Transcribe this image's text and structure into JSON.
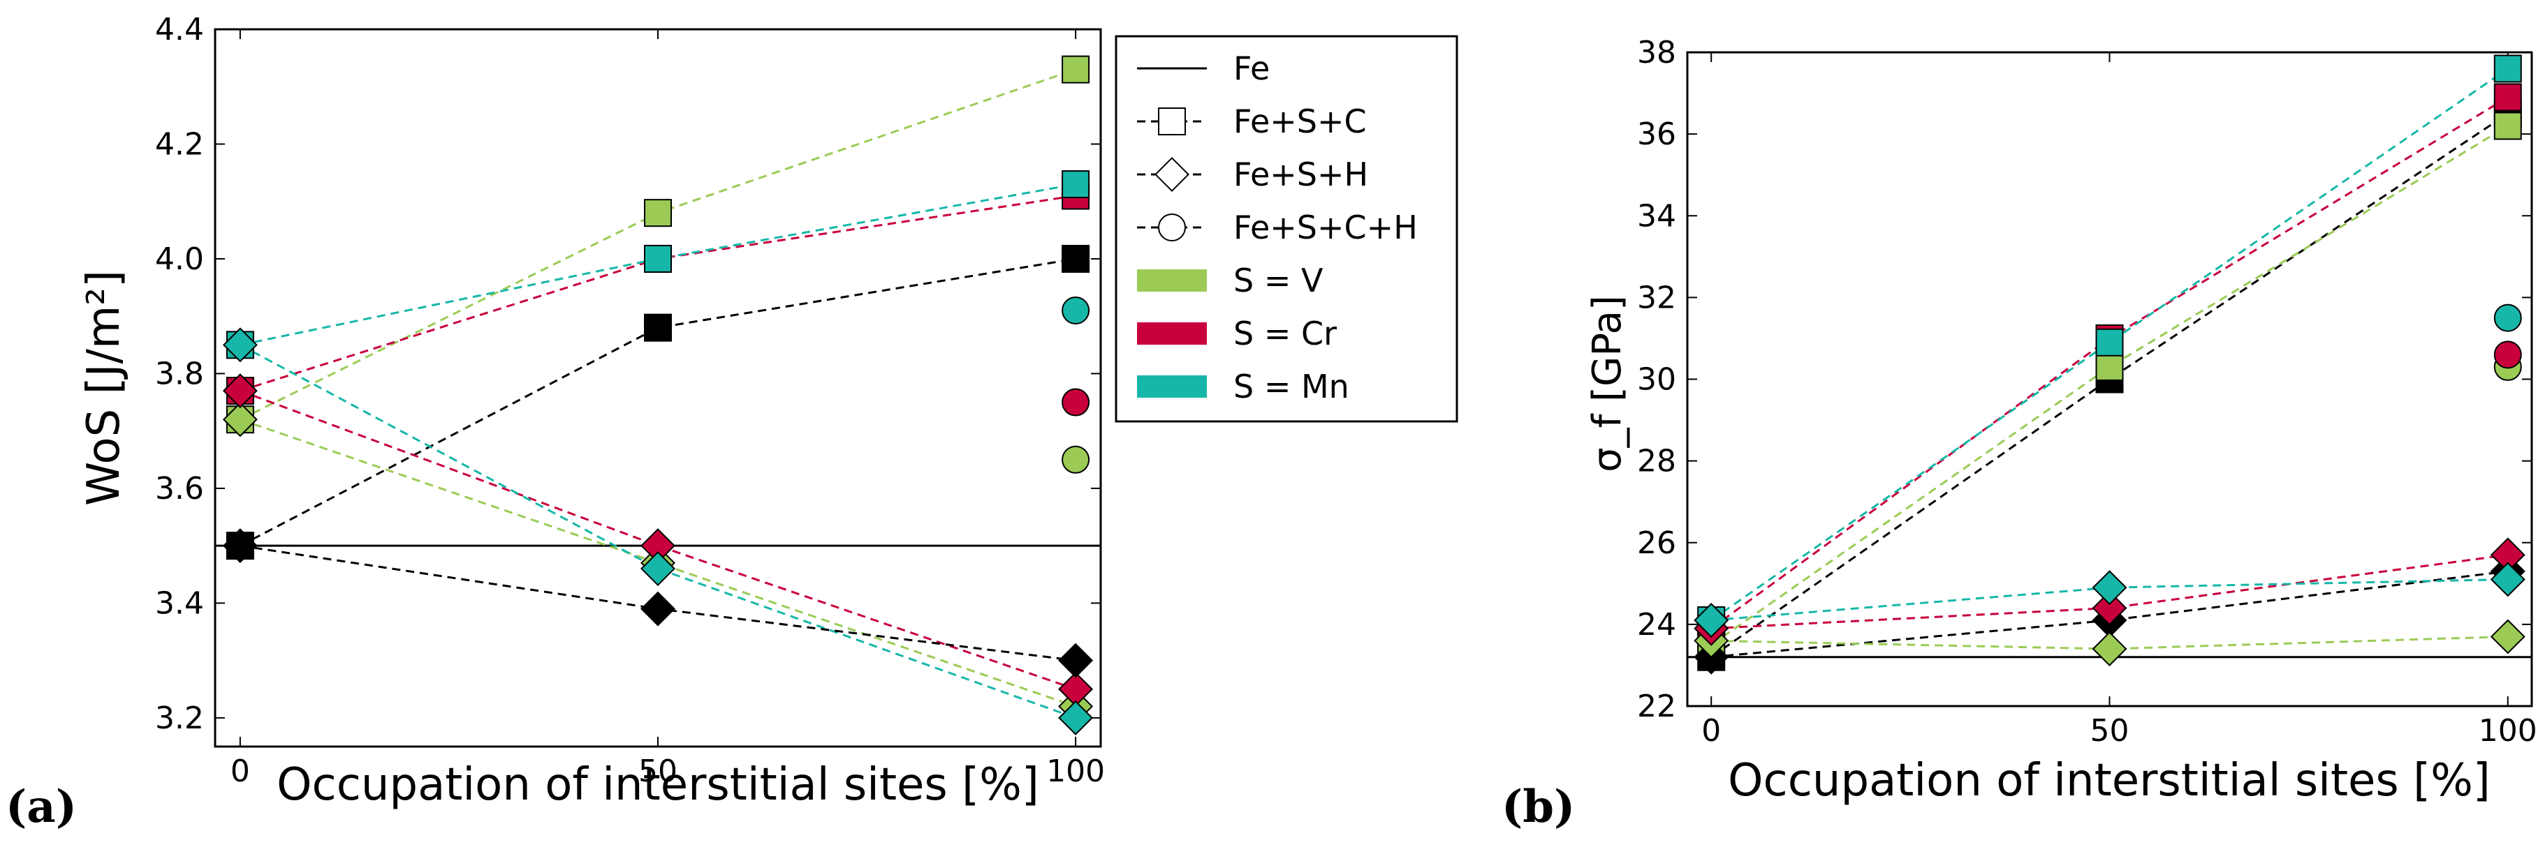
{
  "chart_data": [
    {
      "type": "line",
      "panel_label": "(a)",
      "xlabel": "Occupation of interstitial sites [%]",
      "ylabel": "WoS [J/m²]",
      "xlim": [
        -3,
        103
      ],
      "ylim": [
        3.15,
        4.4
      ],
      "x_ticks": [
        0,
        50,
        100
      ],
      "y_ticks": [
        3.2,
        3.4,
        3.6,
        3.8,
        4.0,
        4.2,
        4.4
      ],
      "y_tick_labels": [
        "3.2",
        "3.4",
        "3.6",
        "3.8",
        "4.0",
        "4.2",
        "4.4"
      ],
      "reference": {
        "name": "Fe",
        "value": 3.5
      },
      "series": [
        {
          "name": "Fe+S+C, S = V",
          "marker": "square",
          "color": "#9bcb55",
          "x": [
            0,
            50,
            100
          ],
          "y": [
            3.72,
            4.08,
            4.33
          ]
        },
        {
          "name": "Fe+S+C, S = Cr",
          "marker": "square",
          "color": "#c8003c",
          "x": [
            0,
            50,
            100
          ],
          "y": [
            3.77,
            4.0,
            4.11
          ]
        },
        {
          "name": "Fe+S+C, S = Mn",
          "marker": "square",
          "color": "#16b7a8",
          "x": [
            0,
            50,
            100
          ],
          "y": [
            3.85,
            4.0,
            4.13
          ]
        },
        {
          "name": "Fe+C",
          "marker": "square",
          "color": "#000000",
          "x": [
            0,
            50,
            100
          ],
          "y": [
            3.5,
            3.88,
            4.0
          ]
        },
        {
          "name": "Fe+S+H, S = V",
          "marker": "diamond",
          "color": "#9bcb55",
          "x": [
            0,
            50,
            100
          ],
          "y": [
            3.72,
            3.47,
            3.22
          ]
        },
        {
          "name": "Fe+S+H, S = Cr",
          "marker": "diamond",
          "color": "#c8003c",
          "x": [
            0,
            50,
            100
          ],
          "y": [
            3.77,
            3.5,
            3.25
          ]
        },
        {
          "name": "Fe+S+H, S = Mn",
          "marker": "diamond",
          "color": "#16b7a8",
          "x": [
            0,
            50,
            100
          ],
          "y": [
            3.85,
            3.46,
            3.2
          ]
        },
        {
          "name": "Fe+H",
          "marker": "diamond",
          "color": "#000000",
          "x": [
            0,
            50,
            100
          ],
          "y": [
            3.5,
            3.39,
            3.3
          ]
        },
        {
          "name": "Fe+S+C+H, S = V",
          "marker": "circle",
          "color": "#9bcb55",
          "x": [
            100
          ],
          "y": [
            3.65
          ]
        },
        {
          "name": "Fe+S+C+H, S = Cr",
          "marker": "circle",
          "color": "#c8003c",
          "x": [
            100
          ],
          "y": [
            3.75
          ]
        },
        {
          "name": "Fe+S+C+H, S = Mn",
          "marker": "circle",
          "color": "#16b7a8",
          "x": [
            100
          ],
          "y": [
            3.91
          ]
        }
      ]
    },
    {
      "type": "line",
      "panel_label": "(b)",
      "xlabel": "Occupation of interstitial sites [%]",
      "ylabel": "σ_f [GPa]",
      "xlim": [
        -3,
        103
      ],
      "ylim": [
        22,
        38
      ],
      "x_ticks": [
        0,
        50,
        100
      ],
      "y_ticks": [
        22,
        24,
        26,
        28,
        30,
        32,
        34,
        36,
        38
      ],
      "y_tick_labels": [
        "22",
        "24",
        "26",
        "28",
        "30",
        "32",
        "34",
        "36",
        "38"
      ],
      "reference": {
        "name": "Fe",
        "value": 23.2
      },
      "series": [
        {
          "name": "Fe+C",
          "marker": "square",
          "color": "#000000",
          "x": [
            0,
            50,
            100
          ],
          "y": [
            23.2,
            30.0,
            36.5
          ]
        },
        {
          "name": "Fe+S+C, S = V",
          "marker": "square",
          "color": "#9bcb55",
          "x": [
            0,
            50,
            100
          ],
          "y": [
            23.5,
            30.3,
            36.2
          ]
        },
        {
          "name": "Fe+S+C, S = Cr",
          "marker": "square",
          "color": "#c8003c",
          "x": [
            0,
            50,
            100
          ],
          "y": [
            23.9,
            31.0,
            36.9
          ]
        },
        {
          "name": "Fe+S+C, S = Mn",
          "marker": "square",
          "color": "#16b7a8",
          "x": [
            0,
            50,
            100
          ],
          "y": [
            24.1,
            30.9,
            37.6
          ]
        },
        {
          "name": "Fe+H",
          "marker": "diamond",
          "color": "#000000",
          "x": [
            0,
            50,
            100
          ],
          "y": [
            23.2,
            24.1,
            25.3
          ]
        },
        {
          "name": "Fe+S+H, S = V",
          "marker": "diamond",
          "color": "#9bcb55",
          "x": [
            0,
            50,
            100
          ],
          "y": [
            23.6,
            23.4,
            23.7
          ]
        },
        {
          "name": "Fe+S+H, S = Cr",
          "marker": "diamond",
          "color": "#c8003c",
          "x": [
            0,
            50,
            100
          ],
          "y": [
            23.9,
            24.4,
            25.7
          ]
        },
        {
          "name": "Fe+S+H, S = Mn",
          "marker": "diamond",
          "color": "#16b7a8",
          "x": [
            0,
            50,
            100
          ],
          "y": [
            24.1,
            24.9,
            25.1
          ]
        },
        {
          "name": "Fe+S+C+H, S = V",
          "marker": "circle",
          "color": "#9bcb55",
          "x": [
            100
          ],
          "y": [
            30.3
          ]
        },
        {
          "name": "Fe+S+C+H, S = Cr",
          "marker": "circle",
          "color": "#c8003c",
          "x": [
            100
          ],
          "y": [
            30.6
          ]
        },
        {
          "name": "Fe+S+C+H, S = Mn",
          "marker": "circle",
          "color": "#16b7a8",
          "x": [
            100
          ],
          "y": [
            31.5
          ]
        }
      ]
    }
  ],
  "legend": {
    "placement": "between panels",
    "entries": [
      {
        "id": "fe",
        "label": "Fe",
        "glyph": "line"
      },
      {
        "id": "fesc",
        "label": "Fe+S+C",
        "glyph": "square"
      },
      {
        "id": "fesh",
        "label": "Fe+S+H",
        "glyph": "diamond"
      },
      {
        "id": "fescH",
        "label": "Fe+S+C+H",
        "glyph": "circle"
      },
      {
        "id": "v",
        "label": "S = V",
        "glyph": "patch",
        "color": "#9bcb55"
      },
      {
        "id": "cr",
        "label": "S = Cr",
        "glyph": "patch",
        "color": "#c8003c"
      },
      {
        "id": "mn",
        "label": "S = Mn",
        "glyph": "patch",
        "color": "#16b7a8"
      }
    ]
  }
}
